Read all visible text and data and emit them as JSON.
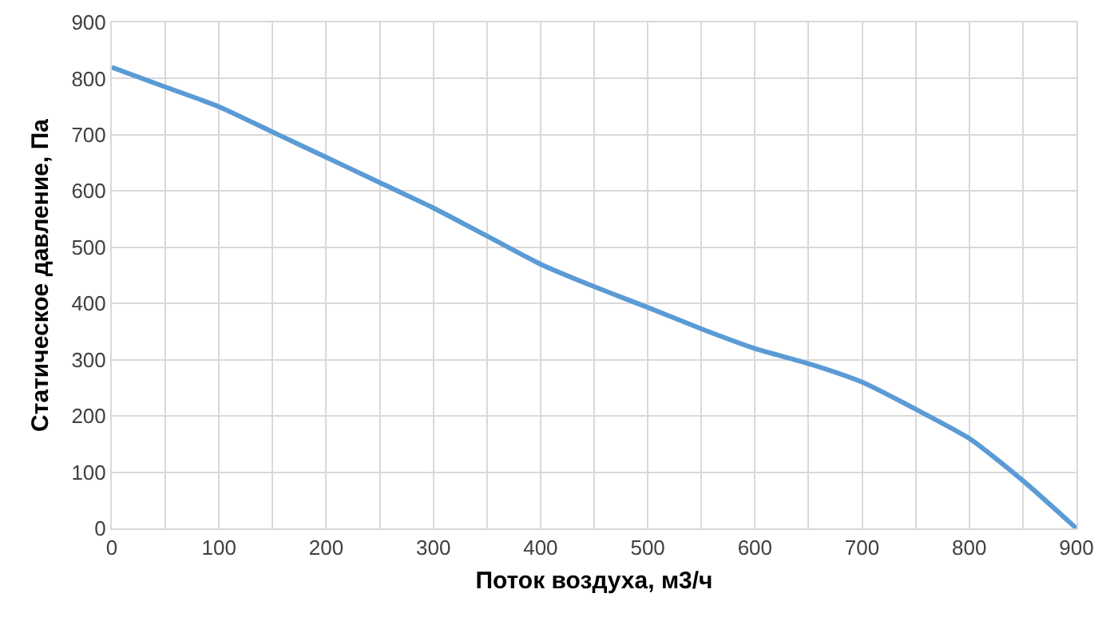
{
  "chart_data": {
    "type": "line",
    "xlabel": "Поток воздуха, м3/ч",
    "ylabel": "Статическое давление, Па",
    "x": [
      0,
      50,
      100,
      150,
      200,
      250,
      300,
      350,
      400,
      450,
      500,
      550,
      600,
      650,
      700,
      750,
      800,
      850,
      900
    ],
    "series": [
      {
        "color": "#5b9bd5",
        "values": [
          820,
          785,
          750,
          705,
          660,
          615,
          570,
          520,
          470,
          430,
          393,
          355,
          320,
          293,
          260,
          212,
          160,
          85,
          0
        ]
      }
    ],
    "xlim": [
      0,
      900
    ],
    "xticks": [
      0,
      {
        "value": 50,
        "label": null
      },
      100,
      {
        "value": 150,
        "label": null
      },
      200,
      {
        "value": 250,
        "label": null
      },
      300,
      {
        "value": 350,
        "label": null
      },
      400,
      {
        "value": 450,
        "label": null
      },
      500,
      {
        "value": 550,
        "label": null
      },
      600,
      {
        "value": 650,
        "label": null
      },
      700,
      {
        "value": 750,
        "label": null
      },
      800,
      {
        "value": 850,
        "label": null
      },
      900
    ],
    "ylim": [
      0,
      900
    ],
    "yticks": [
      0,
      100,
      200,
      300,
      400,
      500,
      600,
      700,
      800,
      900
    ],
    "grid": true,
    "marker": "none",
    "line_style": "solid"
  }
}
